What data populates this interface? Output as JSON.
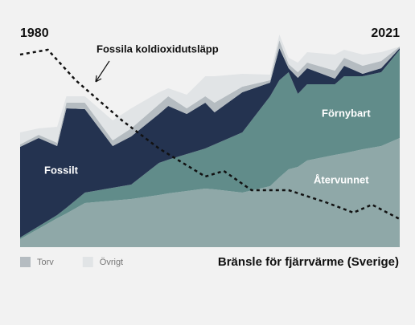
{
  "chart_data": {
    "type": "stacked_area",
    "title": "Bränsle för fjärrvärme (Sverige)",
    "x": [
      1980,
      1982,
      1984,
      1985,
      1987,
      1990,
      1992,
      1995,
      1996,
      1998,
      2000,
      2001,
      2004,
      2007,
      2008,
      2009,
      2010,
      2011,
      2014,
      2015,
      2017,
      2019,
      2021
    ],
    "xlim": [
      1980,
      2021
    ],
    "xticks": [
      1980,
      2021
    ],
    "ylim": [
      0,
      268
    ],
    "series": [
      {
        "name": "Återvunnet",
        "color": "#8fa8a8",
        "values": [
          10,
          23,
          36,
          42,
          55,
          58,
          60,
          65,
          67,
          70,
          73,
          72,
          68,
          76,
          87,
          97,
          100,
          108,
          115,
          117,
          122,
          126,
          136
        ]
      },
      {
        "name": "Förnybart",
        "color": "#618c8a",
        "values": [
          2,
          3,
          4,
          7,
          13,
          16,
          18,
          40,
          42,
          46,
          50,
          56,
          75,
          112,
          121,
          121,
          91,
          95,
          88,
          96,
          91,
          92,
          110
        ]
      },
      {
        "name": "Fossilt",
        "color": "#243350",
        "values": [
          113,
          110,
          86,
          124,
          104,
          52,
          60,
          61,
          67,
          50,
          57,
          40,
          50,
          17,
          40,
          5,
          20,
          20,
          7,
          13,
          3,
          5,
          2
        ]
      },
      {
        "name": "Torv",
        "color": "#b5bcc1",
        "values": [
          3,
          4,
          4,
          7,
          8,
          7,
          10,
          12,
          12,
          7,
          8,
          12,
          7,
          3,
          10,
          5,
          7,
          7,
          10,
          10,
          10,
          9,
          2
        ]
      },
      {
        "name": "Övrigt",
        "color": "#e1e4e6",
        "values": [
          15,
          8,
          20,
          8,
          8,
          25,
          25,
          15,
          10,
          17,
          25,
          33,
          16,
          7,
          7,
          8,
          12,
          13,
          20,
          10,
          14,
          11,
          0
        ]
      }
    ],
    "line": {
      "name": "Fossila koldioxidutsläpp",
      "color": "#111111",
      "x": [
        1980,
        1983,
        1986,
        1991,
        1995,
        2000,
        2002,
        2005,
        2009,
        2013,
        2016,
        2018,
        2021
      ],
      "values": [
        240,
        246,
        208,
        158,
        123,
        88,
        95,
        71,
        71,
        56,
        43,
        53,
        35
      ]
    }
  }
}
